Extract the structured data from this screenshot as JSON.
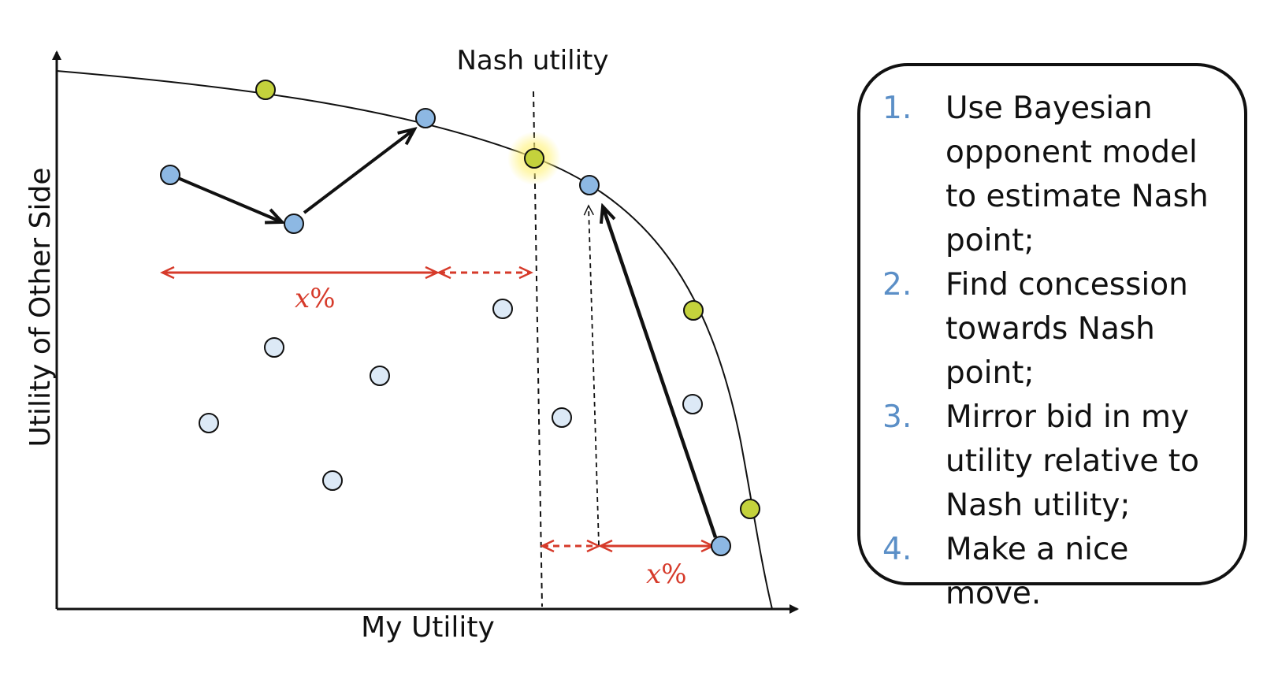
{
  "diagram": {
    "x_axis_label": "My Utility",
    "y_axis_label": "Utility of Other Side",
    "nash_label": "Nash utility",
    "x_percent_label": "x",
    "percent_sign": "%"
  },
  "steps": [
    {
      "number": "1.",
      "text": "Use Bayesian opponent model to estimate Nash point;"
    },
    {
      "number": "2.",
      "text": "Find concession towards Nash point;"
    },
    {
      "number": "3.",
      "text": "Mirror bid in my utility relative to Nash utility;"
    },
    {
      "number": "4.",
      "text": "Make a nice move."
    }
  ],
  "colors": {
    "pareto_bid": "#c4d23c",
    "my_bid": "#8db8e3",
    "other_bid": "#dce9f6",
    "concession_arrow": "#d63a2a",
    "nash_glow": "#fff27a",
    "step_number": "#5b8fc7"
  }
}
